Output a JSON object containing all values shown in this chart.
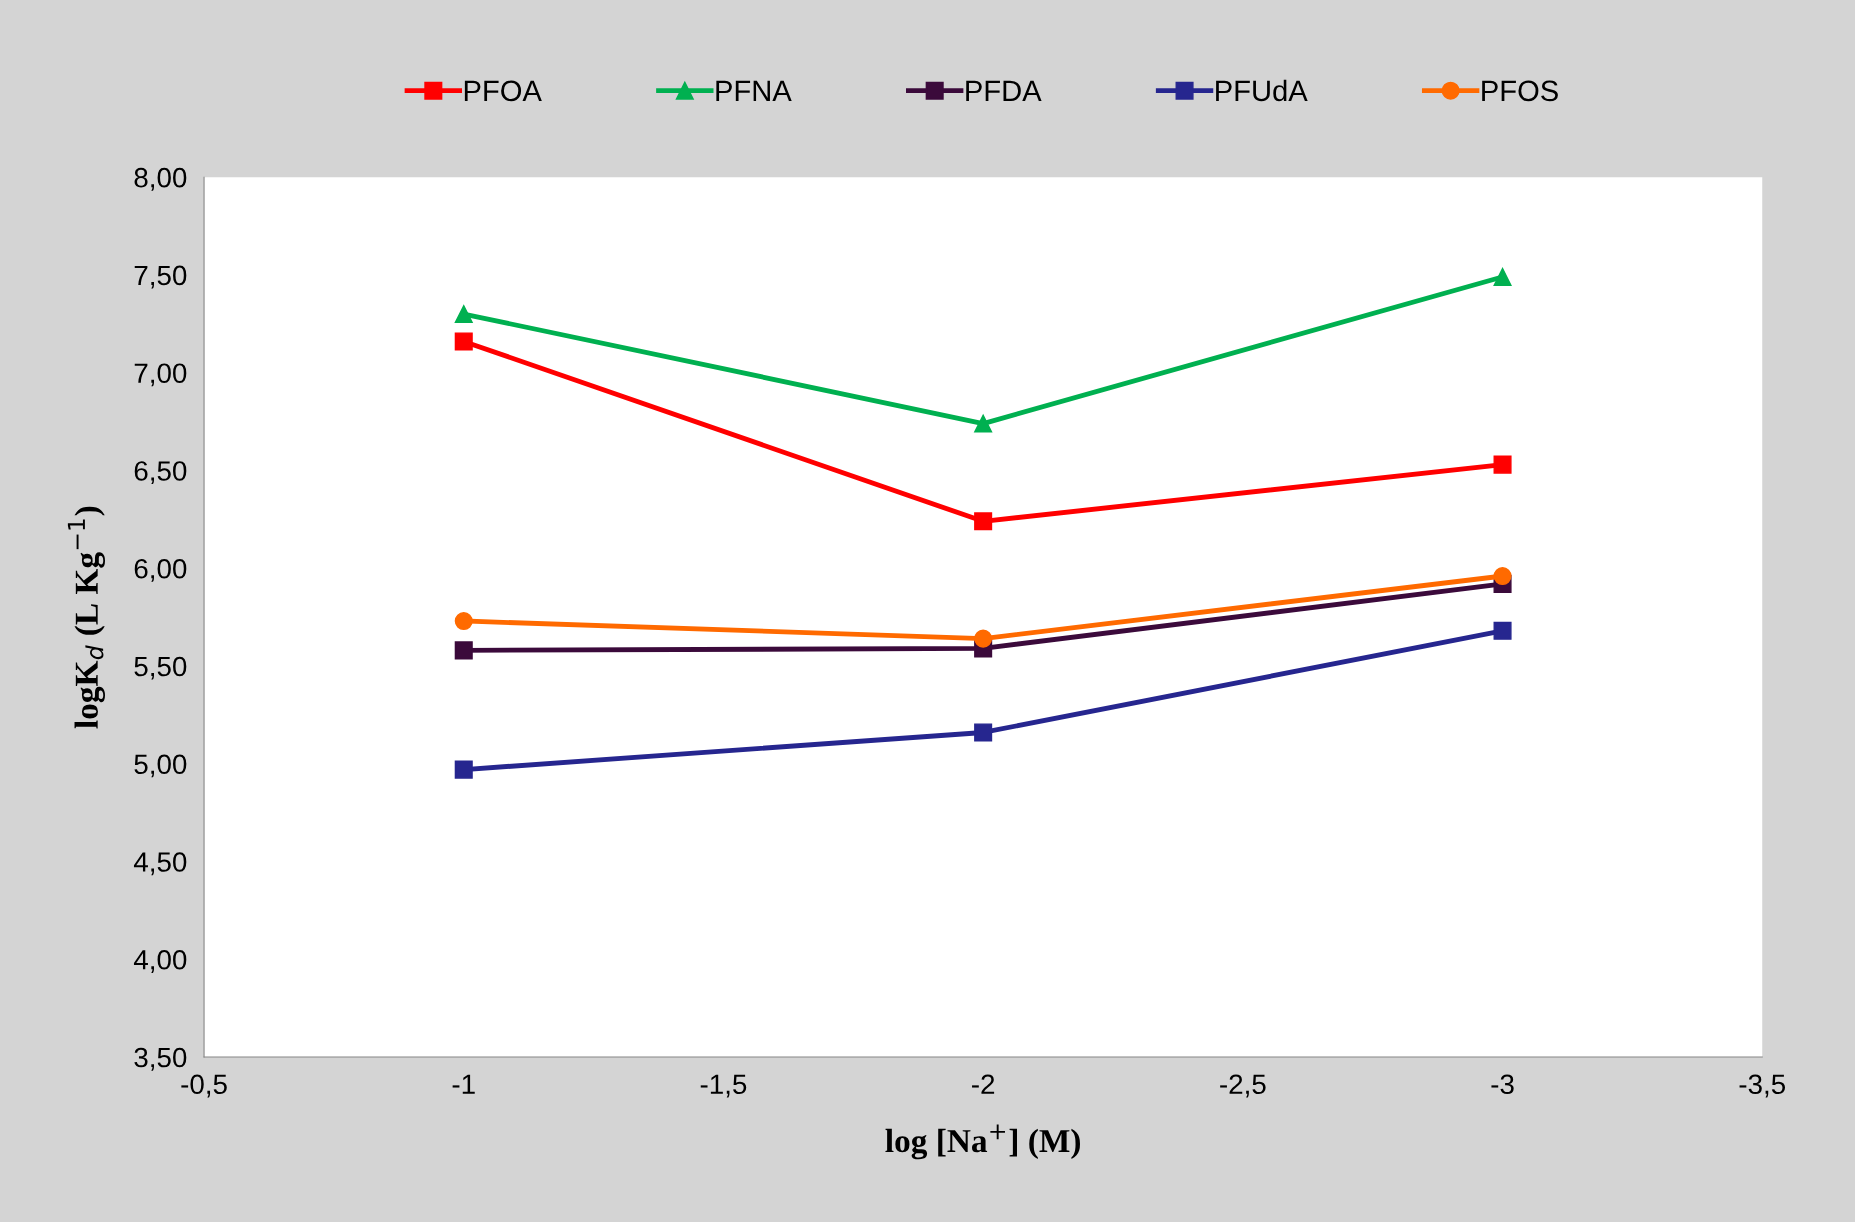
{
  "chart_data": {
    "type": "line",
    "xlabel": "log [Na$^{+}$] (M)",
    "ylabel": "logK$_{d}$ (L Kg$^{−1}$)",
    "x": [
      -1,
      -2,
      -3
    ],
    "series": [
      {
        "name": "PFOA",
        "color": "#ff0000",
        "marker": "square",
        "values": [
          7.16,
          6.24,
          6.53
        ]
      },
      {
        "name": "PFNA",
        "color": "#00b050",
        "marker": "triangle",
        "values": [
          7.3,
          6.74,
          7.49
        ]
      },
      {
        "name": "PFDA",
        "color": "#3b0a3b",
        "marker": "square",
        "values": [
          5.58,
          5.59,
          5.92
        ]
      },
      {
        "name": "PFUdA",
        "color": "#26268f",
        "marker": "square",
        "values": [
          4.97,
          5.16,
          5.68
        ]
      },
      {
        "name": "PFOS",
        "color": "#ff6a00",
        "marker": "circle",
        "values": [
          5.73,
          5.64,
          5.96
        ]
      }
    ],
    "xlim": [
      -0.5,
      -3.5
    ],
    "xticks": [
      {
        "value": -0.5,
        "label": "-0,5"
      },
      {
        "value": -1,
        "label": "-1"
      },
      {
        "value": -1.5,
        "label": "-1,5"
      },
      {
        "value": -2,
        "label": "-2"
      },
      {
        "value": -2.5,
        "label": "-2,5"
      },
      {
        "value": -3,
        "label": "-3"
      },
      {
        "value": -3.5,
        "label": "-3,5"
      }
    ],
    "ylim": [
      3.5,
      8.0
    ],
    "yticks": [
      {
        "value": 3.5,
        "label": "3,50"
      },
      {
        "value": 4.0,
        "label": "4,00"
      },
      {
        "value": 4.5,
        "label": "4,50"
      },
      {
        "value": 5.0,
        "label": "5,00"
      },
      {
        "value": 5.5,
        "label": "5,50"
      },
      {
        "value": 6.0,
        "label": "6,00"
      },
      {
        "value": 6.5,
        "label": "6,50"
      },
      {
        "value": 7.0,
        "label": "7,00"
      },
      {
        "value": 7.5,
        "label": "7,50"
      },
      {
        "value": 8.0,
        "label": "8,00"
      }
    ],
    "grid": false,
    "legend": "top",
    "line_style": "solid"
  }
}
